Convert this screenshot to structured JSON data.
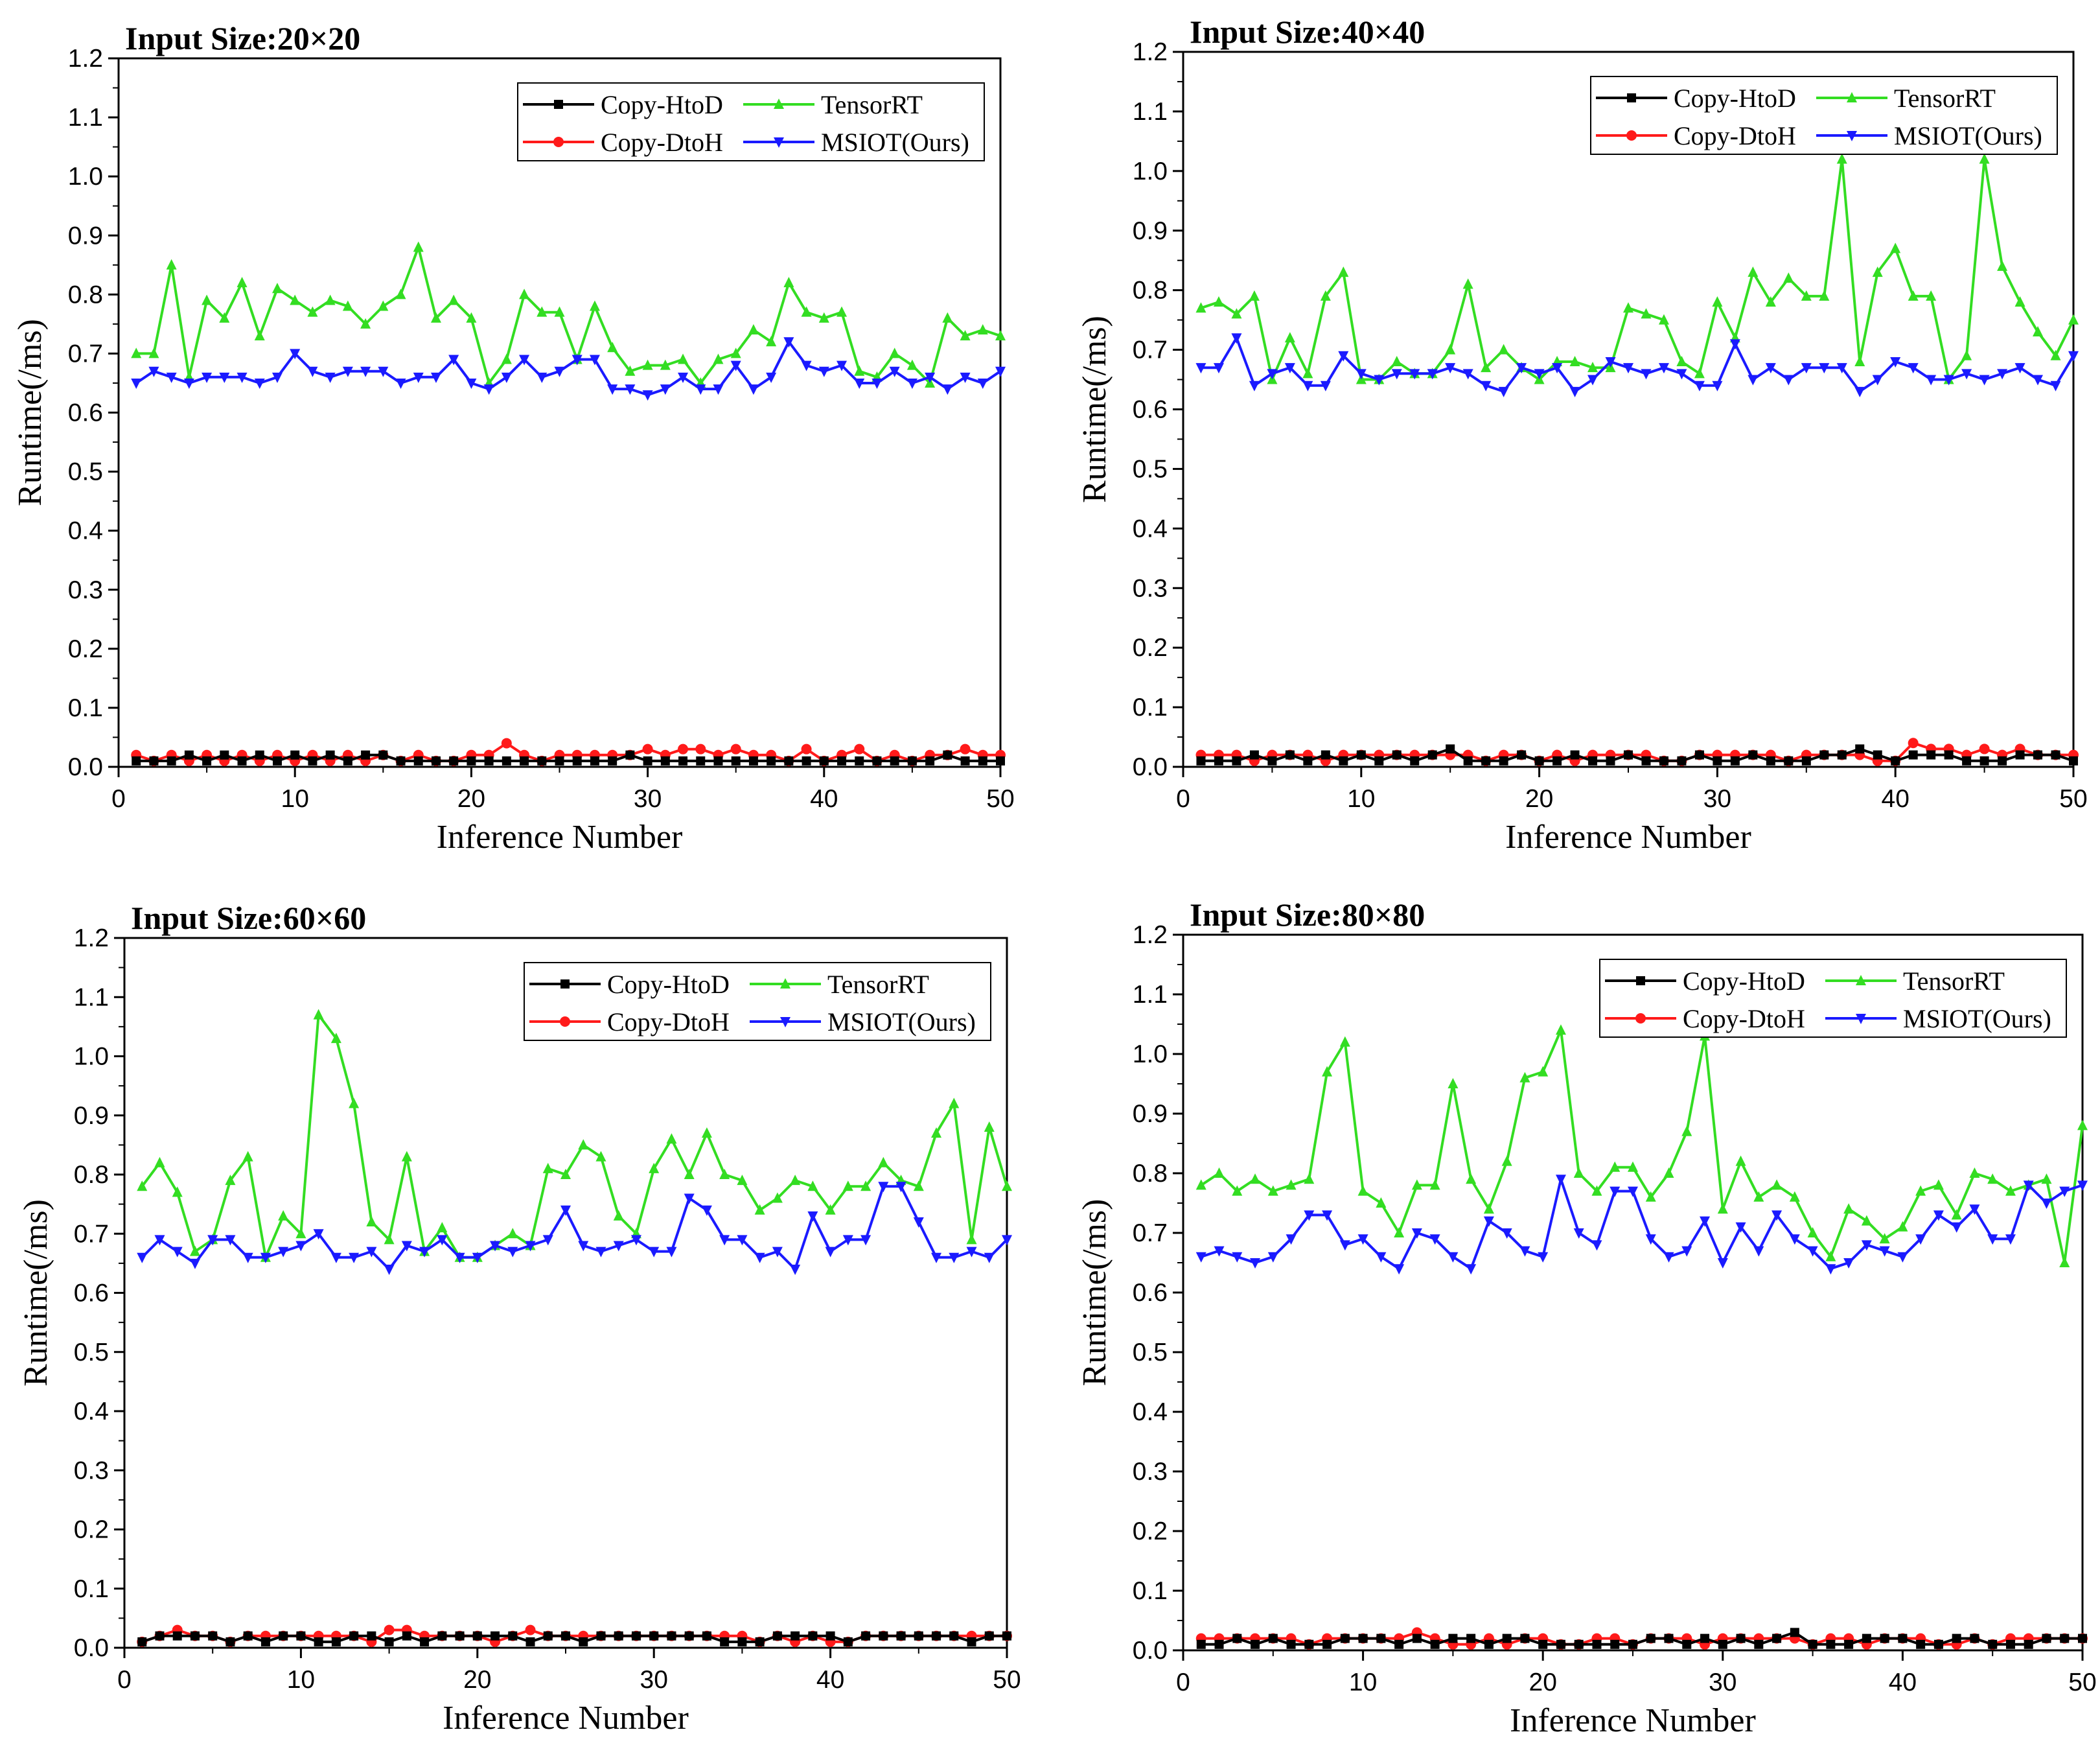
{
  "figure": {
    "background": "#ffffff"
  },
  "legend": {
    "entries": [
      {
        "name": "Copy-HtoD",
        "color": "#000000",
        "marker": "square"
      },
      {
        "name": "TensorRT",
        "color": "#33dd22",
        "marker": "triangle-up"
      },
      {
        "name": "Copy-DtoH",
        "color": "#ff1a1a",
        "marker": "circle"
      },
      {
        "name": "MSIOT(Ours)",
        "color": "#1a1aff",
        "marker": "triangle-down"
      }
    ]
  },
  "chart_data": [
    {
      "type": "line",
      "title": "Input Size:20×20",
      "xlabel": "Inference Number",
      "ylabel": "Runtime(/ms)",
      "xlim": [
        0,
        50
      ],
      "ylim": [
        0,
        1.2
      ],
      "xticks": [
        0,
        10,
        20,
        30,
        40,
        50
      ],
      "xtick_labels": [
        "0",
        "10",
        "20",
        "30",
        "40",
        "50"
      ],
      "yticks": [
        0,
        0.1,
        0.2,
        0.3,
        0.4,
        0.5,
        0.6,
        0.7,
        0.8,
        0.9,
        1.0,
        1.1,
        1.2
      ],
      "ytick_labels": [
        "0.0",
        "0.1",
        "0.2",
        "0.3",
        "0.4",
        "0.5",
        "0.6",
        "0.7",
        "0.8",
        "0.9",
        "1.0",
        "1.1",
        "1.2"
      ],
      "series": [
        {
          "name": "Copy-HtoD",
          "values": [
            0.01,
            0.01,
            0.01,
            0.02,
            0.01,
            0.02,
            0.01,
            0.02,
            0.01,
            0.02,
            0.01,
            0.02,
            0.01,
            0.02,
            0.02,
            0.01,
            0.01,
            0.01,
            0.01,
            0.01,
            0.01,
            0.01,
            0.01,
            0.01,
            0.01,
            0.01,
            0.01,
            0.01,
            0.02,
            0.01,
            0.01,
            0.01,
            0.01,
            0.01,
            0.01,
            0.01,
            0.01,
            0.01,
            0.01,
            0.01,
            0.01,
            0.01,
            0.01,
            0.01,
            0.01,
            0.01,
            0.02,
            0.01,
            0.01,
            0.01
          ]
        },
        {
          "name": "Copy-DtoH",
          "values": [
            0.02,
            0.01,
            0.02,
            0.01,
            0.02,
            0.01,
            0.02,
            0.01,
            0.02,
            0.01,
            0.02,
            0.01,
            0.02,
            0.01,
            0.02,
            0.01,
            0.02,
            0.01,
            0.01,
            0.02,
            0.02,
            0.04,
            0.02,
            0.01,
            0.02,
            0.02,
            0.02,
            0.02,
            0.02,
            0.03,
            0.02,
            0.03,
            0.03,
            0.02,
            0.03,
            0.02,
            0.02,
            0.01,
            0.03,
            0.01,
            0.02,
            0.03,
            0.01,
            0.02,
            0.01,
            0.02,
            0.02,
            0.03,
            0.02,
            0.02
          ]
        },
        {
          "name": "TensorRT",
          "values": [
            0.7,
            0.7,
            0.85,
            0.66,
            0.79,
            0.76,
            0.82,
            0.73,
            0.81,
            0.79,
            0.77,
            0.79,
            0.78,
            0.75,
            0.78,
            0.8,
            0.88,
            0.76,
            0.79,
            0.76,
            0.65,
            0.69,
            0.8,
            0.77,
            0.77,
            0.69,
            0.78,
            0.71,
            0.67,
            0.68,
            0.68,
            0.69,
            0.65,
            0.69,
            0.7,
            0.74,
            0.72,
            0.82,
            0.77,
            0.76,
            0.77,
            0.67,
            0.66,
            0.7,
            0.68,
            0.65,
            0.76,
            0.73,
            0.74,
            0.73
          ]
        },
        {
          "name": "MSIOT(Ours)",
          "values": [
            0.65,
            0.67,
            0.66,
            0.65,
            0.66,
            0.66,
            0.66,
            0.65,
            0.66,
            0.7,
            0.67,
            0.66,
            0.67,
            0.67,
            0.67,
            0.65,
            0.66,
            0.66,
            0.69,
            0.65,
            0.64,
            0.66,
            0.69,
            0.66,
            0.67,
            0.69,
            0.69,
            0.64,
            0.64,
            0.63,
            0.64,
            0.66,
            0.64,
            0.64,
            0.68,
            0.64,
            0.66,
            0.72,
            0.68,
            0.67,
            0.68,
            0.65,
            0.65,
            0.67,
            0.65,
            0.66,
            0.64,
            0.66,
            0.65,
            0.67
          ]
        }
      ]
    },
    {
      "type": "line",
      "title": "Input Size:40×40",
      "xlabel": "Inference Number",
      "ylabel": "Runtime(/ms)",
      "xlim": [
        0,
        50
      ],
      "ylim": [
        0,
        1.2
      ],
      "xticks": [
        0,
        10,
        20,
        30,
        40,
        50
      ],
      "xtick_labels": [
        "0",
        "10",
        "20",
        "30",
        "40",
        "50"
      ],
      "yticks": [
        0,
        0.1,
        0.2,
        0.3,
        0.4,
        0.5,
        0.6,
        0.7,
        0.8,
        0.9,
        1.0,
        1.1,
        1.2
      ],
      "ytick_labels": [
        "0.0",
        "0.1",
        "0.2",
        "0.3",
        "0.4",
        "0.5",
        "0.6",
        "0.7",
        "0.8",
        "0.9",
        "1.0",
        "1.1",
        "1.2"
      ],
      "series": [
        {
          "name": "Copy-HtoD",
          "values": [
            0.01,
            0.01,
            0.01,
            0.02,
            0.01,
            0.02,
            0.01,
            0.02,
            0.01,
            0.02,
            0.01,
            0.02,
            0.01,
            0.02,
            0.03,
            0.01,
            0.01,
            0.01,
            0.02,
            0.01,
            0.01,
            0.02,
            0.01,
            0.01,
            0.02,
            0.01,
            0.01,
            0.01,
            0.02,
            0.01,
            0.01,
            0.02,
            0.01,
            0.01,
            0.01,
            0.02,
            0.02,
            0.03,
            0.02,
            0.01,
            0.02,
            0.02,
            0.02,
            0.01,
            0.01,
            0.01,
            0.02,
            0.02,
            0.02,
            0.01
          ]
        },
        {
          "name": "Copy-DtoH",
          "values": [
            0.02,
            0.02,
            0.02,
            0.01,
            0.02,
            0.02,
            0.02,
            0.01,
            0.02,
            0.02,
            0.02,
            0.02,
            0.02,
            0.02,
            0.02,
            0.02,
            0.01,
            0.02,
            0.02,
            0.01,
            0.02,
            0.01,
            0.02,
            0.02,
            0.02,
            0.02,
            0.01,
            0.01,
            0.02,
            0.02,
            0.02,
            0.02,
            0.02,
            0.01,
            0.02,
            0.02,
            0.02,
            0.02,
            0.01,
            0.01,
            0.04,
            0.03,
            0.03,
            0.02,
            0.03,
            0.02,
            0.03,
            0.02,
            0.02,
            0.02
          ]
        },
        {
          "name": "TensorRT",
          "values": [
            0.77,
            0.78,
            0.76,
            0.79,
            0.65,
            0.72,
            0.66,
            0.79,
            0.83,
            0.65,
            0.65,
            0.68,
            0.66,
            0.66,
            0.7,
            0.81,
            0.67,
            0.7,
            0.67,
            0.65,
            0.68,
            0.68,
            0.67,
            0.67,
            0.77,
            0.76,
            0.75,
            0.68,
            0.66,
            0.78,
            0.72,
            0.83,
            0.78,
            0.82,
            0.79,
            0.79,
            1.02,
            0.68,
            0.83,
            0.87,
            0.79,
            0.79,
            0.65,
            0.69,
            1.02,
            0.84,
            0.78,
            0.73,
            0.69,
            0.75
          ]
        },
        {
          "name": "MSIOT(Ours)",
          "values": [
            0.67,
            0.67,
            0.72,
            0.64,
            0.66,
            0.67,
            0.64,
            0.64,
            0.69,
            0.66,
            0.65,
            0.66,
            0.66,
            0.66,
            0.67,
            0.66,
            0.64,
            0.63,
            0.67,
            0.66,
            0.67,
            0.63,
            0.65,
            0.68,
            0.67,
            0.66,
            0.67,
            0.66,
            0.64,
            0.64,
            0.71,
            0.65,
            0.67,
            0.65,
            0.67,
            0.67,
            0.67,
            0.63,
            0.65,
            0.68,
            0.67,
            0.65,
            0.65,
            0.66,
            0.65,
            0.66,
            0.67,
            0.65,
            0.64,
            0.69
          ]
        }
      ]
    },
    {
      "type": "line",
      "title": "Input Size:60×60",
      "xlabel": "Inference Number",
      "ylabel": "Runtime(/ms)",
      "xlim": [
        0,
        50
      ],
      "ylim": [
        0,
        1.2
      ],
      "xticks": [
        0,
        10,
        20,
        30,
        40,
        50
      ],
      "xtick_labels": [
        "0",
        "10",
        "20",
        "30",
        "40",
        "50"
      ],
      "yticks": [
        0,
        0.1,
        0.2,
        0.3,
        0.4,
        0.5,
        0.6,
        0.7,
        0.8,
        0.9,
        1.0,
        1.1,
        1.2
      ],
      "ytick_labels": [
        "0.0",
        "0.1",
        "0.2",
        "0.3",
        "0.4",
        "0.5",
        "0.6",
        "0.7",
        "0.8",
        "0.9",
        "1.0",
        "1.1",
        "1.2"
      ],
      "series": [
        {
          "name": "Copy-HtoD",
          "values": [
            0.01,
            0.02,
            0.02,
            0.02,
            0.02,
            0.01,
            0.02,
            0.01,
            0.02,
            0.02,
            0.01,
            0.01,
            0.02,
            0.02,
            0.01,
            0.02,
            0.01,
            0.02,
            0.02,
            0.02,
            0.02,
            0.02,
            0.01,
            0.02,
            0.02,
            0.01,
            0.02,
            0.02,
            0.02,
            0.02,
            0.02,
            0.02,
            0.02,
            0.01,
            0.01,
            0.01,
            0.02,
            0.02,
            0.02,
            0.02,
            0.01,
            0.02,
            0.02,
            0.02,
            0.02,
            0.02,
            0.02,
            0.01,
            0.02,
            0.02
          ]
        },
        {
          "name": "Copy-DtoH",
          "values": [
            0.01,
            0.02,
            0.03,
            0.02,
            0.02,
            0.01,
            0.02,
            0.02,
            0.02,
            0.02,
            0.02,
            0.02,
            0.02,
            0.01,
            0.03,
            0.03,
            0.02,
            0.02,
            0.02,
            0.02,
            0.01,
            0.02,
            0.03,
            0.02,
            0.02,
            0.02,
            0.02,
            0.02,
            0.02,
            0.02,
            0.02,
            0.02,
            0.02,
            0.02,
            0.02,
            0.01,
            0.02,
            0.01,
            0.02,
            0.01,
            0.01,
            0.02,
            0.02,
            0.02,
            0.02,
            0.02,
            0.02,
            0.02,
            0.02,
            0.02
          ]
        },
        {
          "name": "TensorRT",
          "values": [
            0.78,
            0.82,
            0.77,
            0.67,
            0.69,
            0.79,
            0.83,
            0.66,
            0.73,
            0.7,
            1.07,
            1.03,
            0.92,
            0.72,
            0.69,
            0.83,
            0.67,
            0.71,
            0.66,
            0.66,
            0.68,
            0.7,
            0.68,
            0.81,
            0.8,
            0.85,
            0.83,
            0.73,
            0.7,
            0.81,
            0.86,
            0.8,
            0.87,
            0.8,
            0.79,
            0.74,
            0.76,
            0.79,
            0.78,
            0.74,
            0.78,
            0.78,
            0.82,
            0.79,
            0.78,
            0.87,
            0.92,
            0.69,
            0.88,
            0.78
          ]
        },
        {
          "name": "MSIOT(Ours)",
          "values": [
            0.66,
            0.69,
            0.67,
            0.65,
            0.69,
            0.69,
            0.66,
            0.66,
            0.67,
            0.68,
            0.7,
            0.66,
            0.66,
            0.67,
            0.64,
            0.68,
            0.67,
            0.69,
            0.66,
            0.66,
            0.68,
            0.67,
            0.68,
            0.69,
            0.74,
            0.68,
            0.67,
            0.68,
            0.69,
            0.67,
            0.67,
            0.76,
            0.74,
            0.69,
            0.69,
            0.66,
            0.67,
            0.64,
            0.73,
            0.67,
            0.69,
            0.69,
            0.78,
            0.78,
            0.72,
            0.66,
            0.66,
            0.67,
            0.66,
            0.69
          ]
        }
      ]
    },
    {
      "type": "line",
      "title": "Input Size:80×80",
      "xlabel": "Inference Number",
      "ylabel": "Runtime(/ms)",
      "xlim": [
        0,
        50
      ],
      "ylim": [
        0,
        1.2
      ],
      "xticks": [
        0,
        10,
        20,
        30,
        40,
        50
      ],
      "xtick_labels": [
        "0",
        "10",
        "20",
        "30",
        "40",
        "50"
      ],
      "yticks": [
        0,
        0.1,
        0.2,
        0.3,
        0.4,
        0.5,
        0.6,
        0.7,
        0.8,
        0.9,
        1.0,
        1.1,
        1.2
      ],
      "ytick_labels": [
        "0.0",
        "0.1",
        "0.2",
        "0.3",
        "0.4",
        "0.5",
        "0.6",
        "0.7",
        "0.8",
        "0.9",
        "1.0",
        "1.1",
        "1.2"
      ],
      "series": [
        {
          "name": "Copy-HtoD",
          "values": [
            0.01,
            0.01,
            0.02,
            0.01,
            0.02,
            0.01,
            0.01,
            0.01,
            0.02,
            0.02,
            0.02,
            0.01,
            0.02,
            0.01,
            0.02,
            0.02,
            0.01,
            0.02,
            0.02,
            0.01,
            0.01,
            0.01,
            0.01,
            0.01,
            0.01,
            0.02,
            0.02,
            0.01,
            0.02,
            0.01,
            0.02,
            0.01,
            0.02,
            0.03,
            0.01,
            0.01,
            0.01,
            0.02,
            0.02,
            0.02,
            0.01,
            0.01,
            0.02,
            0.02,
            0.01,
            0.01,
            0.01,
            0.02,
            0.02,
            0.02
          ]
        },
        {
          "name": "Copy-DtoH",
          "values": [
            0.02,
            0.02,
            0.02,
            0.02,
            0.02,
            0.02,
            0.01,
            0.02,
            0.02,
            0.02,
            0.02,
            0.02,
            0.03,
            0.02,
            0.01,
            0.01,
            0.02,
            0.01,
            0.02,
            0.02,
            0.01,
            0.01,
            0.02,
            0.02,
            0.01,
            0.02,
            0.02,
            0.02,
            0.01,
            0.02,
            0.02,
            0.02,
            0.02,
            0.02,
            0.01,
            0.02,
            0.02,
            0.01,
            0.02,
            0.02,
            0.02,
            0.01,
            0.01,
            0.02,
            0.01,
            0.02,
            0.02,
            0.02,
            0.02,
            0.02
          ]
        },
        {
          "name": "TensorRT",
          "values": [
            0.78,
            0.8,
            0.77,
            0.79,
            0.77,
            0.78,
            0.79,
            0.97,
            1.02,
            0.77,
            0.75,
            0.7,
            0.78,
            0.78,
            0.95,
            0.79,
            0.74,
            0.82,
            0.96,
            0.97,
            1.04,
            0.8,
            0.77,
            0.81,
            0.81,
            0.76,
            0.8,
            0.87,
            1.03,
            0.74,
            0.82,
            0.76,
            0.78,
            0.76,
            0.7,
            0.66,
            0.74,
            0.72,
            0.69,
            0.71,
            0.77,
            0.78,
            0.73,
            0.8,
            0.79,
            0.77,
            0.78,
            0.79,
            0.65,
            0.88
          ]
        },
        {
          "name": "MSIOT(Ours)",
          "values": [
            0.66,
            0.67,
            0.66,
            0.65,
            0.66,
            0.69,
            0.73,
            0.73,
            0.68,
            0.69,
            0.66,
            0.64,
            0.7,
            0.69,
            0.66,
            0.64,
            0.72,
            0.7,
            0.67,
            0.66,
            0.79,
            0.7,
            0.68,
            0.77,
            0.77,
            0.69,
            0.66,
            0.67,
            0.72,
            0.65,
            0.71,
            0.67,
            0.73,
            0.69,
            0.67,
            0.64,
            0.65,
            0.68,
            0.67,
            0.66,
            0.69,
            0.73,
            0.71,
            0.74,
            0.69,
            0.69,
            0.78,
            0.75,
            0.77,
            0.78
          ]
        }
      ]
    }
  ]
}
